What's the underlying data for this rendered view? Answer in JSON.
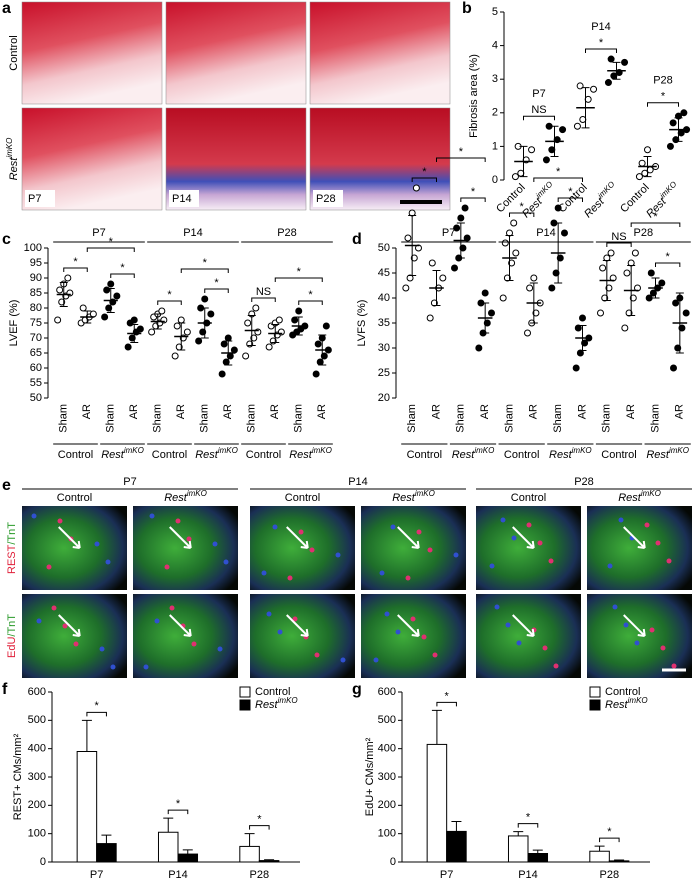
{
  "panel_a": {
    "label": "a",
    "rows": [
      "Control",
      {
        "base": "Rest",
        "sup": "imKO"
      }
    ],
    "timepoints": [
      "P7",
      "P14",
      "P28"
    ]
  },
  "panel_e": {
    "label": "e",
    "timepoints": [
      "P7",
      "P14",
      "P28"
    ],
    "columns": [
      "Control",
      {
        "base": "Rest",
        "sup": "imKO"
      }
    ],
    "rows": [
      [
        "REST",
        "/TnT"
      ],
      [
        "EdU",
        "/TnT"
      ]
    ]
  },
  "chart_data": [
    {
      "type": "dot",
      "label": "b",
      "ylabel": "Fibrosis area (%)",
      "ylim": [
        0,
        5
      ],
      "yticks": [
        0,
        1,
        2,
        3,
        4,
        5
      ],
      "groups": [
        {
          "name": "Control",
          "filled": false,
          "points": [
            0.1,
            0.2,
            0.6,
            0.9,
            1.0
          ],
          "mean": 0.55,
          "sd": 0.45
        },
        {
          "name": {
            "base": "Rest",
            "sup": "imKO"
          },
          "filled": true,
          "points": [
            0.6,
            0.9,
            1.2,
            1.5,
            1.6
          ],
          "mean": 1.15,
          "sd": 0.45
        },
        {
          "name": "Control",
          "filled": false,
          "points": [
            1.6,
            1.8,
            2.4,
            2.7,
            2.8
          ],
          "mean": 2.15,
          "sd": 0.6
        },
        {
          "name": {
            "base": "Rest",
            "sup": "imKO"
          },
          "filled": true,
          "points": [
            2.9,
            3.1,
            3.2,
            3.5,
            3.6
          ],
          "mean": 3.25,
          "sd": 0.25
        },
        {
          "name": "Control",
          "filled": false,
          "points": [
            0.1,
            0.2,
            0.3,
            0.4,
            0.5,
            0.9
          ],
          "mean": 0.4,
          "sd": 0.3
        },
        {
          "name": {
            "base": "Rest",
            "sup": "imKO"
          },
          "filled": true,
          "points": [
            1.0,
            1.2,
            1.4,
            1.5,
            1.7,
            1.9,
            2.0
          ],
          "mean": 1.5,
          "sd": 0.35
        }
      ],
      "timepoints": [
        {
          "label": "P7",
          "groups": [
            0,
            1
          ]
        },
        {
          "label": "P14",
          "groups": [
            2,
            3
          ]
        },
        {
          "label": "P28",
          "groups": [
            4,
            5
          ]
        }
      ],
      "comparisons": [
        {
          "label": "NS",
          "between": [
            0,
            1
          ]
        },
        {
          "label": "*",
          "between": [
            2,
            3
          ]
        },
        {
          "label": "*",
          "between": [
            4,
            5
          ]
        }
      ]
    },
    {
      "type": "dot",
      "label": "c",
      "ylabel": "LVEF (%)",
      "ylim": [
        50,
        100
      ],
      "yticks": [
        50,
        55,
        60,
        65,
        70,
        75,
        80,
        85,
        90,
        95,
        100
      ],
      "groups": [
        {
          "name": "Sham",
          "filled": false,
          "points": [
            76,
            82,
            84,
            85,
            86,
            88,
            90
          ],
          "mean": 84.5,
          "sd": 4
        },
        {
          "name": "AR",
          "filled": false,
          "points": [
            75,
            76,
            77,
            78,
            80
          ],
          "mean": 77,
          "sd": 2
        },
        {
          "name": "Sham",
          "filled": true,
          "points": [
            77,
            80,
            82,
            84,
            86,
            88
          ],
          "mean": 82.5,
          "sd": 4
        },
        {
          "name": "AR",
          "filled": true,
          "points": [
            67,
            70,
            72,
            73,
            75,
            76
          ],
          "mean": 71.5,
          "sd": 3
        },
        {
          "name": "Sham",
          "filled": false,
          "points": [
            72,
            74,
            75,
            76,
            77,
            78,
            79
          ],
          "mean": 75.5,
          "sd": 2.5
        },
        {
          "name": "AR",
          "filled": false,
          "points": [
            64,
            67,
            70,
            72,
            74,
            76
          ],
          "mean": 70.5,
          "sd": 4.5
        },
        {
          "name": "Sham",
          "filled": true,
          "points": [
            69,
            72,
            75,
            78,
            80,
            83
          ],
          "mean": 75,
          "sd": 5
        },
        {
          "name": "AR",
          "filled": true,
          "points": [
            58,
            62,
            64,
            66,
            68,
            70
          ],
          "mean": 65,
          "sd": 4
        },
        {
          "name": "Sham",
          "filled": false,
          "points": [
            64,
            68,
            70,
            72,
            75,
            78,
            80
          ],
          "mean": 72.5,
          "sd": 5
        },
        {
          "name": "AR",
          "filled": false,
          "points": [
            67,
            69,
            71,
            72,
            74,
            75,
            76
          ],
          "mean": 71.5,
          "sd": 3
        },
        {
          "name": "Sham",
          "filled": true,
          "points": [
            71,
            72,
            73,
            74,
            76,
            79
          ],
          "mean": 74,
          "sd": 3
        },
        {
          "name": "AR",
          "filled": true,
          "points": [
            58,
            62,
            64,
            66,
            68,
            70,
            74
          ],
          "mean": 66,
          "sd": 5
        }
      ],
      "genotypes": [
        {
          "label": "Control",
          "groups": [
            0,
            1
          ]
        },
        {
          "label": {
            "base": "Rest",
            "sup": "imKO"
          },
          "groups": [
            2,
            3
          ]
        },
        {
          "label": "Control",
          "groups": [
            4,
            5
          ]
        },
        {
          "label": {
            "base": "Rest",
            "sup": "imKO"
          },
          "groups": [
            6,
            7
          ]
        },
        {
          "label": "Control",
          "groups": [
            8,
            9
          ]
        },
        {
          "label": {
            "base": "Rest",
            "sup": "imKO"
          },
          "groups": [
            10,
            11
          ]
        }
      ],
      "timepoints": [
        {
          "label": "P7",
          "groups": [
            0,
            3
          ]
        },
        {
          "label": "P14",
          "groups": [
            4,
            7
          ]
        },
        {
          "label": "P28",
          "groups": [
            8,
            11
          ]
        }
      ],
      "comparisons": [
        {
          "label": "*",
          "between": [
            0,
            1
          ]
        },
        {
          "label": "*",
          "between": [
            2,
            3
          ]
        },
        {
          "label": "*",
          "between": [
            1,
            3
          ]
        },
        {
          "label": "*",
          "between": [
            4,
            5
          ]
        },
        {
          "label": "*",
          "between": [
            6,
            7
          ]
        },
        {
          "label": "*",
          "between": [
            5,
            7
          ]
        },
        {
          "label": "NS",
          "between": [
            8,
            9
          ]
        },
        {
          "label": "*",
          "between": [
            10,
            11
          ]
        },
        {
          "label": "*",
          "between": [
            9,
            11
          ]
        }
      ]
    },
    {
      "type": "dot",
      "label": "d",
      "ylabel": "LVFS (%)",
      "ylim": [
        20,
        50
      ],
      "yticks": [
        20,
        25,
        30,
        35,
        40,
        45,
        50
      ],
      "groups": [
        {
          "name": "Sham",
          "filled": false,
          "points": [
            42,
            44,
            48,
            50,
            52,
            57,
            62
          ],
          "mean": 50.5,
          "sd": 6
        },
        {
          "name": "AR",
          "filled": false,
          "points": [
            36,
            39,
            42,
            44,
            47
          ],
          "mean": 42,
          "sd": 3.5
        },
        {
          "name": "Sham",
          "filled": true,
          "points": [
            46,
            48,
            50,
            52,
            54,
            56,
            58
          ],
          "mean": 51.5,
          "sd": 3.5
        },
        {
          "name": "AR",
          "filled": true,
          "points": [
            30,
            33,
            35,
            37,
            39,
            41
          ],
          "mean": 36,
          "sd": 3
        },
        {
          "name": "Sham",
          "filled": false,
          "points": [
            40,
            44,
            47,
            49,
            51,
            53,
            55
          ],
          "mean": 48,
          "sd": 4.5
        },
        {
          "name": "AR",
          "filled": false,
          "points": [
            33,
            35,
            37,
            39,
            42,
            44
          ],
          "mean": 39,
          "sd": 4
        },
        {
          "name": "Sham",
          "filled": true,
          "points": [
            42,
            45,
            48,
            53,
            55,
            58
          ],
          "mean": 49,
          "sd": 6
        },
        {
          "name": "AR",
          "filled": true,
          "points": [
            26,
            29,
            31,
            32,
            34,
            36
          ],
          "mean": 32,
          "sd": 2.5
        },
        {
          "name": "Sham",
          "filled": false,
          "points": [
            37,
            40,
            42,
            44,
            46,
            48,
            49
          ],
          "mean": 43.5,
          "sd": 4
        },
        {
          "name": "AR",
          "filled": false,
          "points": [
            34,
            37,
            40,
            42,
            45,
            47,
            49
          ],
          "mean": 41.5,
          "sd": 5
        },
        {
          "name": "Sham",
          "filled": true,
          "points": [
            40,
            41,
            42,
            43,
            45
          ],
          "mean": 42,
          "sd": 2
        },
        {
          "name": "AR",
          "filled": true,
          "points": [
            26,
            30,
            34,
            37,
            39,
            40
          ],
          "mean": 35,
          "sd": 6
        }
      ],
      "genotypes": [
        {
          "label": "Control",
          "groups": [
            0,
            1
          ]
        },
        {
          "label": {
            "base": "Rest",
            "sup": "imKO"
          },
          "groups": [
            2,
            3
          ]
        },
        {
          "label": "Control",
          "groups": [
            4,
            5
          ]
        },
        {
          "label": {
            "base": "Rest",
            "sup": "imKO"
          },
          "groups": [
            6,
            7
          ]
        },
        {
          "label": "Control",
          "groups": [
            8,
            9
          ]
        },
        {
          "label": {
            "base": "Rest",
            "sup": "imKO"
          },
          "groups": [
            10,
            11
          ]
        }
      ],
      "timepoints": [
        {
          "label": "P7",
          "groups": [
            0,
            3
          ]
        },
        {
          "label": "P14",
          "groups": [
            4,
            7
          ]
        },
        {
          "label": "P28",
          "groups": [
            8,
            11
          ]
        }
      ],
      "comparisons": [
        {
          "label": "*",
          "between": [
            0,
            1
          ]
        },
        {
          "label": "*",
          "between": [
            2,
            3
          ]
        },
        {
          "label": "*",
          "between": [
            1,
            3
          ]
        },
        {
          "label": "*",
          "between": [
            4,
            5
          ]
        },
        {
          "label": "*",
          "between": [
            6,
            7
          ]
        },
        {
          "label": "*",
          "between": [
            5,
            7
          ]
        },
        {
          "label": "NS",
          "between": [
            8,
            9
          ]
        },
        {
          "label": "*",
          "between": [
            10,
            11
          ]
        },
        {
          "label": "*",
          "between": [
            9,
            11
          ]
        }
      ]
    },
    {
      "type": "bar",
      "label": "f",
      "ylabel": "REST+ CMs/mm²",
      "ylim": [
        0,
        600
      ],
      "yticks": [
        0,
        100,
        200,
        300,
        400,
        500,
        600
      ],
      "categories": [
        "P7",
        "P14",
        "P28"
      ],
      "series": [
        {
          "name": "Control",
          "color": "#ffffff",
          "values": [
            390,
            105,
            55
          ],
          "errors": [
            110,
            50,
            45
          ]
        },
        {
          "name": {
            "base": "Rest",
            "sup": "imKO"
          },
          "color": "#000000",
          "values": [
            65,
            28,
            5
          ],
          "errors": [
            30,
            15,
            3
          ]
        }
      ],
      "comparisons": [
        {
          "label": "*",
          "category": 0
        },
        {
          "label": "*",
          "category": 1
        },
        {
          "label": "*",
          "category": 2
        }
      ]
    },
    {
      "type": "bar",
      "label": "g",
      "ylabel": "EdU+ CMs/mm²",
      "ylim": [
        0,
        600
      ],
      "yticks": [
        0,
        100,
        200,
        300,
        400,
        500,
        600
      ],
      "categories": [
        "P7",
        "P14",
        "P28"
      ],
      "series": [
        {
          "name": "Control",
          "color": "#ffffff",
          "values": [
            415,
            92,
            38
          ],
          "errors": [
            120,
            15,
            18
          ]
        },
        {
          "name": {
            "base": "Rest",
            "sup": "imKO"
          },
          "color": "#000000",
          "values": [
            108,
            30,
            4
          ],
          "errors": [
            35,
            12,
            3
          ]
        }
      ],
      "comparisons": [
        {
          "label": "*",
          "category": 0
        },
        {
          "label": "*",
          "category": 1
        },
        {
          "label": "*",
          "category": 2
        }
      ]
    }
  ]
}
